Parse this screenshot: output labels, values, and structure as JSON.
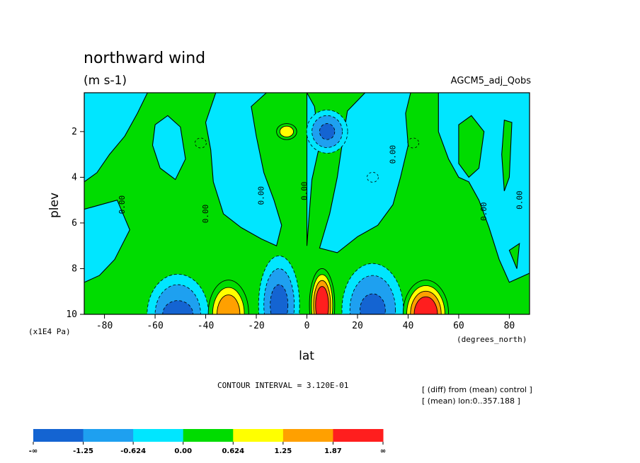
{
  "chart_data": {
    "type": "heatmap",
    "title": "northward wind",
    "units": "(m s-1)",
    "run_label": "AGCM5_adj_Qobs",
    "xlabel": "lat",
    "x_units": "(degrees_north)",
    "ylabel": "plev",
    "y_units": "(x1E4 Pa)",
    "xlim": [
      -88,
      88
    ],
    "ylim": [
      10,
      0.3
    ],
    "x_ticks": [
      {
        "v": -80,
        "label": "-80"
      },
      {
        "v": -60,
        "label": "-60"
      },
      {
        "v": -40,
        "label": "-40"
      },
      {
        "v": -20,
        "label": "-20"
      },
      {
        "v": 0,
        "label": "0"
      },
      {
        "v": 20,
        "label": "20"
      },
      {
        "v": 40,
        "label": "40"
      },
      {
        "v": 60,
        "label": "60"
      },
      {
        "v": 80,
        "label": "80"
      }
    ],
    "y_ticks": [
      {
        "v": 2,
        "label": "2"
      },
      {
        "v": 4,
        "label": "4"
      },
      {
        "v": 6,
        "label": "6"
      },
      {
        "v": 8,
        "label": "8"
      },
      {
        "v": 10,
        "label": "10"
      }
    ],
    "contour_interval_text": "CONTOUR INTERVAL = 3.120E-01",
    "notes": [
      "[ (diff) from (mean) control ]",
      "[ (mean) lon:0..357.188 ]"
    ],
    "zero_contour_labels": [
      {
        "lat": -72,
        "plev": 5.2,
        "text": "0.00"
      },
      {
        "lat": -39,
        "plev": 5.6,
        "text": "0.00"
      },
      {
        "lat": -17,
        "plev": 4.8,
        "text": "0.00"
      },
      {
        "lat": 0,
        "plev": 4.6,
        "text": "0.00"
      },
      {
        "lat": 35,
        "plev": 3.0,
        "text": "0.00"
      },
      {
        "lat": 71,
        "plev": 5.5,
        "text": "0.00"
      },
      {
        "lat": 85,
        "plev": 5.0,
        "text": "0.00"
      }
    ],
    "levels": [
      {
        "label": "-∞",
        "color": "#1464d2"
      },
      {
        "label": "-1.25",
        "color": "#1ea0f0"
      },
      {
        "label": "-0.624",
        "color": "#00e6ff"
      },
      {
        "label": "0.00",
        "color": "#00dc00"
      },
      {
        "label": "0.624",
        "color": "#ffff00"
      },
      {
        "label": "1.25",
        "color": "#ffa000"
      },
      {
        "label": "1.87",
        "color": "#ff1e1e"
      },
      {
        "label": "∞",
        "color": "#ff1e1e"
      }
    ],
    "legend_colors": [
      "#1464d2",
      "#1ea0f0",
      "#00e6ff",
      "#00dc00",
      "#ffff00",
      "#ffa000",
      "#ff1e1e"
    ],
    "cyan_regions": [
      [
        [
          -88,
          0.3
        ],
        [
          -63,
          0.3
        ],
        [
          -67,
          1.2
        ],
        [
          -72,
          2.2
        ],
        [
          -78,
          3.0
        ],
        [
          -83,
          3.8
        ],
        [
          -88,
          4.2
        ]
      ],
      [
        [
          -75,
          5.0
        ],
        [
          -70,
          6.3
        ],
        [
          -76,
          7.6
        ],
        [
          -82,
          8.3
        ],
        [
          -88,
          8.6
        ],
        [
          -88,
          5.4
        ]
      ],
      [
        [
          -60,
          1.7
        ],
        [
          -55,
          1.3
        ],
        [
          -50,
          1.8
        ],
        [
          -48,
          3.2
        ],
        [
          -52,
          4.1
        ],
        [
          -58,
          3.6
        ],
        [
          -61,
          2.6
        ]
      ],
      [
        [
          -36,
          0.3
        ],
        [
          -16,
          0.3
        ],
        [
          -22,
          0.9
        ],
        [
          -20,
          2.2
        ],
        [
          -17,
          3.8
        ],
        [
          -13,
          5.0
        ],
        [
          -10,
          6.1
        ],
        [
          -12,
          7.0
        ],
        [
          -18,
          6.7
        ],
        [
          -26,
          6.2
        ],
        [
          -33,
          5.6
        ],
        [
          -37,
          4.2
        ],
        [
          -38,
          2.8
        ],
        [
          -40,
          1.6
        ]
      ],
      [
        [
          0,
          0.3
        ],
        [
          3,
          0.9
        ],
        [
          5,
          2.6
        ],
        [
          2,
          4.1
        ],
        [
          1,
          5.5
        ],
        [
          0,
          7.0
        ]
      ],
      [
        [
          23,
          0.3
        ],
        [
          41,
          0.3
        ],
        [
          39,
          1.2
        ],
        [
          40,
          2.6
        ],
        [
          37,
          4.0
        ],
        [
          34,
          5.2
        ],
        [
          28,
          6.1
        ],
        [
          20,
          6.6
        ],
        [
          12,
          7.3
        ],
        [
          5,
          7.1
        ],
        [
          9,
          5.6
        ],
        [
          12,
          4.0
        ],
        [
          14,
          2.5
        ],
        [
          16,
          1.1
        ]
      ],
      [
        [
          52,
          0.3
        ],
        [
          88,
          0.3
        ],
        [
          88,
          8.2
        ],
        [
          80,
          8.6
        ],
        [
          76,
          7.6
        ],
        [
          72,
          6.2
        ],
        [
          68,
          5.0
        ],
        [
          64,
          4.2
        ],
        [
          60,
          4.0
        ],
        [
          56,
          3.2
        ],
        [
          52,
          2.0
        ]
      ]
    ],
    "green_islands": [
      [
        [
          60,
          1.7
        ],
        [
          65,
          1.3
        ],
        [
          70,
          2.0
        ],
        [
          68,
          3.6
        ],
        [
          64,
          4.0
        ],
        [
          60,
          3.4
        ]
      ],
      [
        [
          78,
          1.5
        ],
        [
          81,
          1.6
        ],
        [
          80,
          4.0
        ],
        [
          78,
          4.6
        ],
        [
          77,
          3.0
        ]
      ],
      [
        [
          80,
          7.2
        ],
        [
          84,
          6.9
        ],
        [
          83,
          8.0
        ]
      ]
    ],
    "blue_cells": [
      {
        "lat": -51,
        "plev": 10.0,
        "rx": 9,
        "ry": 1.3,
        "core_rx": 6,
        "core_ry": 0.6
      },
      {
        "lat": -11,
        "plev": 9.6,
        "rx": 6,
        "ry": 1.6,
        "core_rx": 3.5,
        "core_ry": 0.9
      },
      {
        "lat": 26,
        "plev": 9.8,
        "rx": 9,
        "ry": 1.5,
        "core_rx": 5,
        "core_ry": 0.7
      },
      {
        "lat": 8,
        "plev": 2.0,
        "rx": 6,
        "ry": 0.7,
        "core_rx": 3,
        "core_ry": 0.35
      }
    ],
    "warm_cells": [
      {
        "lat": -31,
        "plev": 10.0,
        "rx": 8,
        "ry": 1.5,
        "steps": 3
      },
      {
        "lat": 6,
        "plev": 9.6,
        "rx": 5,
        "ry": 1.6,
        "steps": 4
      },
      {
        "lat": 47,
        "plev": 10.0,
        "rx": 9,
        "ry": 1.5,
        "steps": 4
      },
      {
        "lat": -8,
        "plev": 2.0,
        "rx": 4,
        "ry": 0.35,
        "steps": 2
      }
    ],
    "small_neg_contours": [
      {
        "lat": -42,
        "plev": 2.5
      },
      {
        "lat": 42,
        "plev": 2.5
      },
      {
        "lat": 26,
        "plev": 4.0
      }
    ]
  }
}
